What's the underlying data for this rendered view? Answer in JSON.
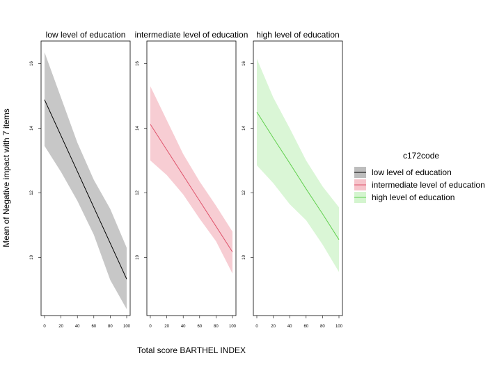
{
  "chart_data": {
    "type": "line",
    "ylabel": "Mean of Negative impact with 7 items",
    "xlabel": "Total score BARTHEL INDEX",
    "xlim": [
      0,
      100
    ],
    "ylim": [
      8.2,
      16.7
    ],
    "x_ticks": [
      0,
      20,
      40,
      60,
      80,
      100
    ],
    "y_ticks": [
      10,
      12,
      14,
      16
    ],
    "legend": {
      "title": "c172code",
      "position": "right",
      "entries": [
        "low level of education",
        "intermediate level of education",
        "high level of education"
      ]
    },
    "panels": [
      {
        "title": "low level of education",
        "line_color": "#000000",
        "band_color": "#bdbdbd",
        "x": [
          0,
          20,
          40,
          60,
          80,
          100
        ],
        "y": [
          14.88,
          13.77,
          12.66,
          11.55,
          10.44,
          9.33
        ],
        "lower": [
          13.45,
          12.65,
          11.75,
          10.7,
          9.3,
          8.4
        ],
        "upper": [
          16.35,
          14.95,
          13.55,
          12.4,
          11.5,
          10.3
        ]
      },
      {
        "title": "intermediate level of education",
        "line_color": "#df536b",
        "band_color": "#f6c4cb",
        "x": [
          0,
          20,
          40,
          60,
          80,
          100
        ],
        "y": [
          14.12,
          13.33,
          12.54,
          11.75,
          10.96,
          10.17
        ],
        "lower": [
          13.0,
          12.55,
          11.95,
          11.2,
          10.5,
          9.5
        ],
        "upper": [
          15.3,
          14.25,
          13.2,
          12.35,
          11.6,
          10.8
        ]
      },
      {
        "title": "high level of education",
        "line_color": "#61d04f",
        "band_color": "#d4f5cf",
        "x": [
          0,
          20,
          40,
          60,
          80,
          100
        ],
        "y": [
          14.5,
          13.7,
          12.92,
          12.12,
          11.35,
          10.55
        ],
        "lower": [
          12.85,
          12.3,
          11.65,
          11.15,
          10.4,
          9.55
        ],
        "upper": [
          16.15,
          14.95,
          14.0,
          13.0,
          12.2,
          11.55
        ]
      }
    ]
  }
}
